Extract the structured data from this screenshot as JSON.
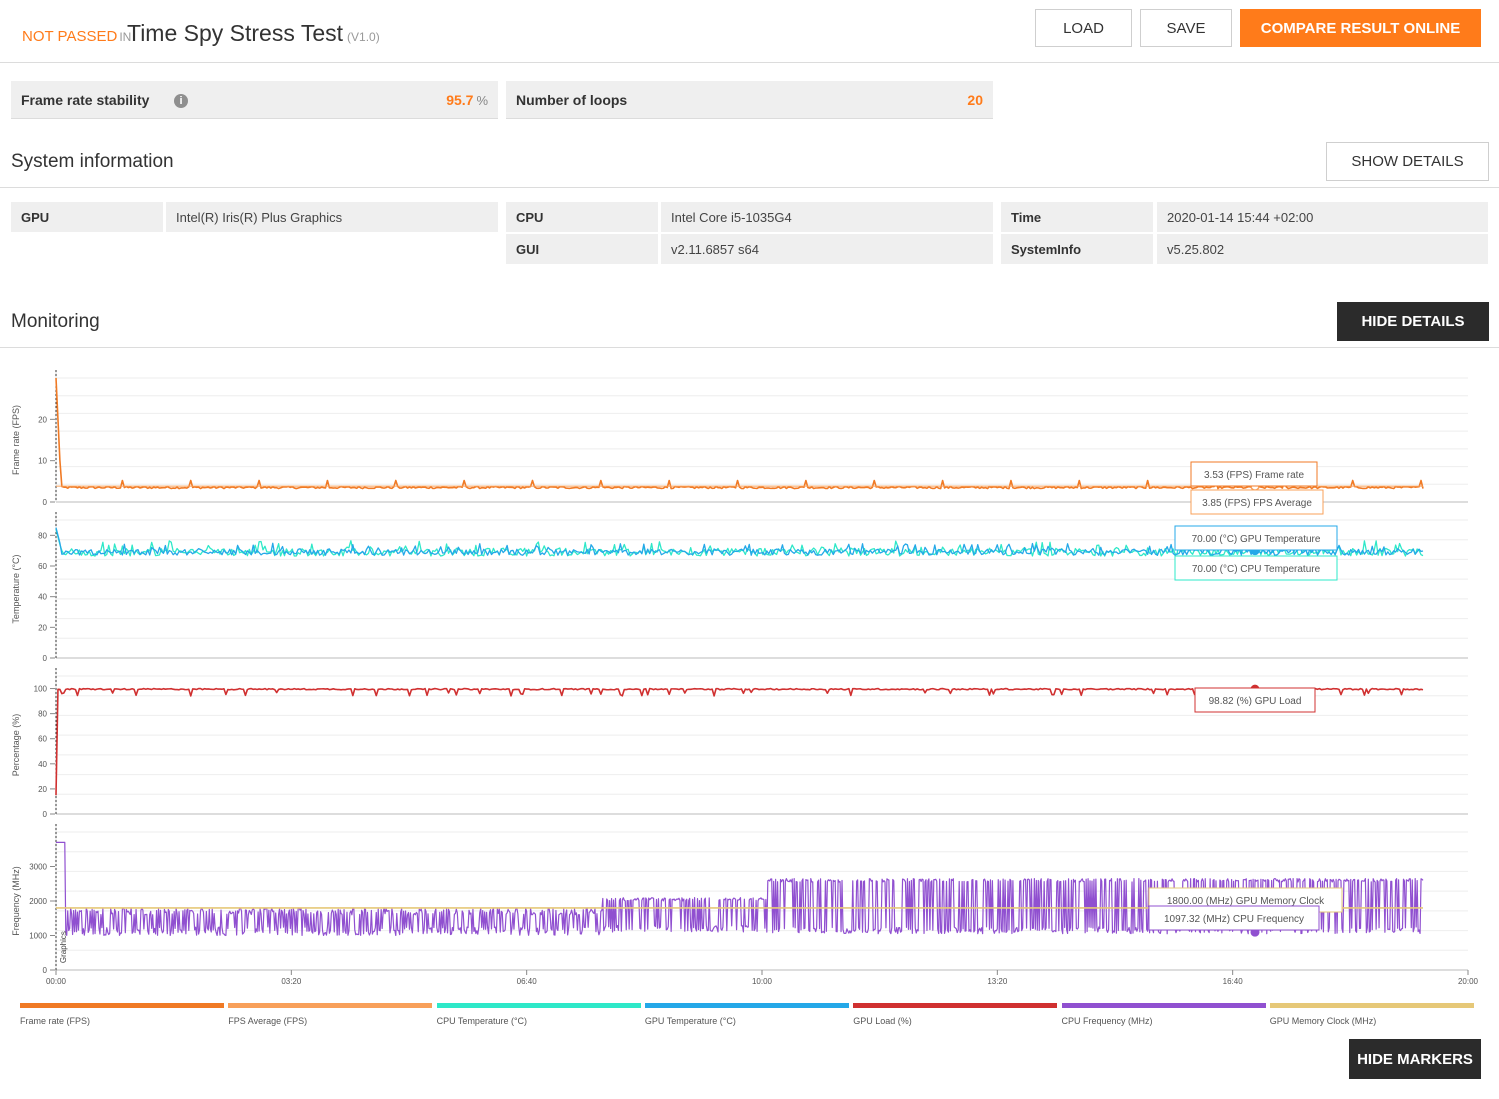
{
  "header": {
    "status": "NOT PASSED",
    "in": "IN",
    "title": "Time Spy Stress Test",
    "version": "(V1.0)",
    "load_label": "LOAD",
    "save_label": "SAVE",
    "compare_label": "COMPARE RESULT ONLINE"
  },
  "stats": {
    "stability_label": "Frame rate stability",
    "stability_value": "95.7",
    "stability_unit": "%",
    "loops_label": "Number of loops",
    "loops_value": "20"
  },
  "system": {
    "title": "System information",
    "show_details_label": "SHOW DETAILS",
    "gpu_key": "GPU",
    "gpu_value": "Intel(R) Iris(R) Plus Graphics",
    "cpu_key": "CPU",
    "cpu_value": "Intel Core i5-1035G4",
    "gui_key": "GUI",
    "gui_value": "v2.11.6857 s64",
    "time_key": "Time",
    "time_value": "2020-01-14 15:44 +02:00",
    "sysinfo_key": "SystemInfo",
    "sysinfo_value": "v5.25.802"
  },
  "monitoring": {
    "title": "Monitoring",
    "hide_details_label": "HIDE DETAILS",
    "hide_markers_label": "HIDE MARKERS",
    "marker_label": "Graphics"
  },
  "colors": {
    "accent": "#ff7b1a",
    "frame_rate": "#f07a25",
    "fps_avg": "#f8a05a",
    "cpu_temp": "#2ee8c8",
    "gpu_temp": "#24a8e8",
    "gpu_load": "#d03030",
    "cpu_freq": "#9050d0",
    "gpu_mem": "#e6c878"
  },
  "chart_data": {
    "type": "line",
    "x_ticks": [
      "00:00",
      "03:20",
      "06:40",
      "10:00",
      "13:20",
      "16:40",
      "20:00"
    ],
    "panels": [
      {
        "ylabel": "Frame rate (FPS)",
        "y_ticks": [
          "0",
          "10",
          "20"
        ],
        "ylim": [
          0,
          30
        ],
        "series": [
          {
            "name": "Frame rate (FPS)",
            "values": "~3.5 FPS with periodic spikes ~5",
            "level": 3.5
          },
          {
            "name": "FPS Average (FPS)",
            "level": 3.85
          }
        ],
        "tooltips": [
          "3.53 (FPS) Frame rate",
          "3.85 (FPS) FPS Average"
        ]
      },
      {
        "ylabel": "Temperature (°C)",
        "y_ticks": [
          "0",
          "20",
          "40",
          "60",
          "80"
        ],
        "ylim": [
          0,
          90
        ],
        "series": [
          {
            "name": "GPU Temperature (°C)",
            "level": 70
          },
          {
            "name": "CPU Temperature (°C)",
            "level": 70
          }
        ],
        "tooltips": [
          "70.00 (°C) GPU Temperature",
          "70.00 (°C) CPU Temperature"
        ]
      },
      {
        "ylabel": "Percentage (%)",
        "y_ticks": [
          "0",
          "20",
          "40",
          "60",
          "80",
          "100"
        ],
        "ylim": [
          0,
          110
        ],
        "series": [
          {
            "name": "GPU Load (%)",
            "level": 98.82
          }
        ],
        "tooltips": [
          "98.82 (%) GPU Load"
        ]
      },
      {
        "ylabel": "Frequency (MHz)",
        "y_ticks": [
          "0",
          "1000",
          "2000",
          "3000"
        ],
        "ylim": [
          0,
          4000
        ],
        "series": [
          {
            "name": "GPU Memory Clock (MHz)",
            "level": 1800
          },
          {
            "name": "CPU Frequency (MHz)",
            "level": 1097.32
          }
        ],
        "tooltips": [
          "1800.00 (MHz) GPU Memory Clock",
          "1097.32 (MHz) CPU Frequency"
        ]
      }
    ],
    "legend": [
      "Frame rate (FPS)",
      "FPS Average (FPS)",
      "CPU Temperature (°C)",
      "GPU Temperature (°C)",
      "GPU Load (%)",
      "CPU Frequency (MHz)",
      "GPU Memory Clock (MHz)"
    ]
  }
}
